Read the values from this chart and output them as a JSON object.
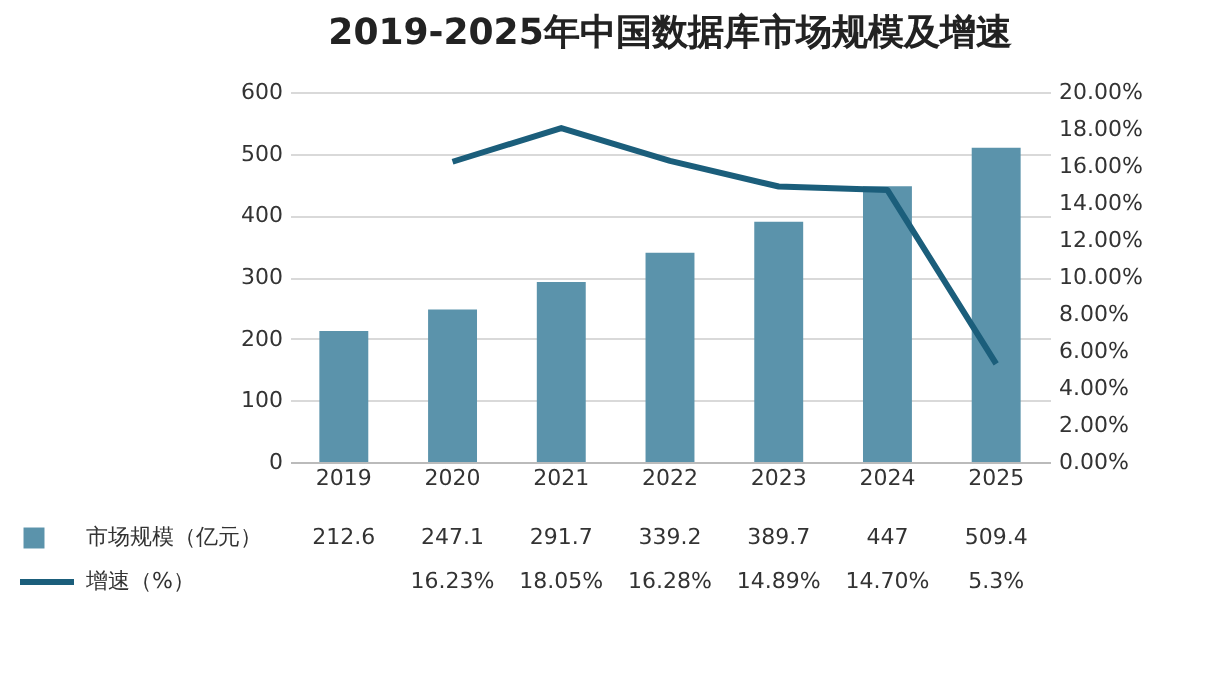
{
  "chart_data": {
    "type": "bar",
    "title": "2019-2025年中国数据库市场规模及增速",
    "categories": [
      "2019",
      "2020",
      "2021",
      "2022",
      "2023",
      "2024",
      "2025"
    ],
    "series": [
      {
        "name": "市场规模（亿元）",
        "color": "#5b93ab",
        "values": [
          212.6,
          247.1,
          291.7,
          339.2,
          389.7,
          447,
          509.4
        ]
      },
      {
        "name": "增速（%）",
        "type": "line",
        "axis": "y2",
        "color": "#1b5e7b",
        "values": [
          null,
          16.23,
          18.05,
          16.28,
          14.89,
          14.7,
          5.3
        ],
        "value_labels": [
          null,
          "16.23%",
          "18.05%",
          "16.28%",
          "14.89%",
          "14.70%",
          "5.3%"
        ]
      }
    ],
    "ylim": [
      0,
      600
    ],
    "yticks": [
      0,
      100,
      200,
      300,
      400,
      500,
      600
    ],
    "y2lim": [
      0,
      20
    ],
    "y2ticks": [
      {
        "value": 0,
        "label": "0.00%"
      },
      {
        "value": 2,
        "label": "2.00%"
      },
      {
        "value": 4,
        "label": "4.00%"
      },
      {
        "value": 6,
        "label": "6.00%"
      },
      {
        "value": 8,
        "label": "8.00%"
      },
      {
        "value": 10,
        "label": "10.00%"
      },
      {
        "value": 12,
        "label": "12.00%"
      },
      {
        "value": 14,
        "label": "14.00%"
      },
      {
        "value": 16,
        "label": "16.00%"
      },
      {
        "value": 18,
        "label": "18.00%"
      },
      {
        "value": 20,
        "label": "20.00%"
      }
    ],
    "grid": "y",
    "legend": "bottom",
    "data_labels": true,
    "marker": "none",
    "line_style": "solid"
  }
}
